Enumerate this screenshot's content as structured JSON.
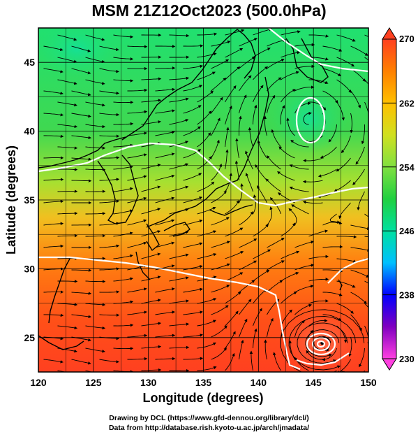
{
  "title": "MSM 21Z12Oct2023 (500.0hPa)",
  "x_axis": {
    "label": "Longitude (degrees)",
    "ticks": [
      120,
      125,
      130,
      135,
      140,
      145,
      150
    ],
    "range": [
      120,
      150
    ]
  },
  "y_axis": {
    "label": "Latitude  (degrees)",
    "ticks": [
      25,
      30,
      35,
      40,
      45
    ],
    "range": [
      22.5,
      47.5
    ]
  },
  "colorbar": {
    "ticks": [
      230,
      238,
      246,
      254,
      262,
      270
    ],
    "range": [
      230,
      270
    ],
    "colors": [
      "#ff40e0",
      "#8000c0",
      "#0000ff",
      "#00c0ff",
      "#00e0a0",
      "#20d040",
      "#80e040",
      "#d0e020",
      "#ffc000",
      "#ff8000",
      "#ff4020"
    ]
  },
  "footer": {
    "line1": "Drawing by DCL (https://www.gfd-dennou.org/library/dcl/)",
    "line2": "Data from http://database.rish.kyoto-u.ac.jp/arch/jmadata/"
  },
  "typhoon_center": {
    "lon": 145.8,
    "lat": 24.6
  }
}
